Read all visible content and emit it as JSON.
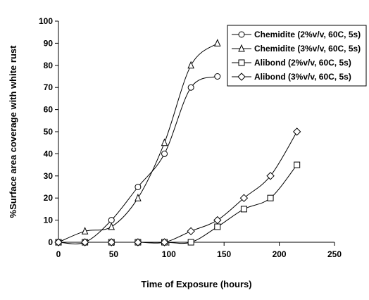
{
  "chart_data": {
    "type": "line",
    "xlabel": "Time of Exposure (hours)",
    "ylabel": "%Surface area coverage with white rust",
    "xlim": [
      0,
      250
    ],
    "ylim": [
      0,
      100
    ],
    "xticks": [
      "0",
      "50",
      "100",
      "150",
      "200",
      "250"
    ],
    "yticks": [
      "0",
      "10",
      "20",
      "30",
      "40",
      "50",
      "60",
      "70",
      "80",
      "90",
      "100"
    ],
    "grid": false,
    "legend_position": "top-right",
    "series": [
      {
        "name": "Chemidite (2%v/v, 60C, 5s)",
        "marker": "circle",
        "x": [
          0,
          24,
          48,
          72,
          96,
          120,
          144
        ],
        "y": [
          0,
          0,
          10,
          25,
          40,
          70,
          75
        ]
      },
      {
        "name": "Chemidite (3%v/v, 60C, 5s)",
        "marker": "triangle",
        "x": [
          0,
          24,
          48,
          72,
          96,
          120,
          144
        ],
        "y": [
          0,
          5,
          7,
          20,
          45,
          80,
          90
        ]
      },
      {
        "name": "Alibond (2%v/v, 60C, 5s)",
        "marker": "square",
        "x": [
          0,
          24,
          48,
          72,
          96,
          120,
          144,
          168,
          192,
          216
        ],
        "y": [
          0,
          0,
          0,
          0,
          0,
          0,
          7,
          15,
          20,
          35
        ]
      },
      {
        "name": "Alibond (3%v/v, 60C, 5s)",
        "marker": "diamond",
        "x": [
          0,
          24,
          48,
          72,
          96,
          120,
          144,
          168,
          192,
          216
        ],
        "y": [
          0,
          0,
          0,
          0,
          0,
          5,
          10,
          20,
          30,
          50
        ]
      }
    ]
  }
}
